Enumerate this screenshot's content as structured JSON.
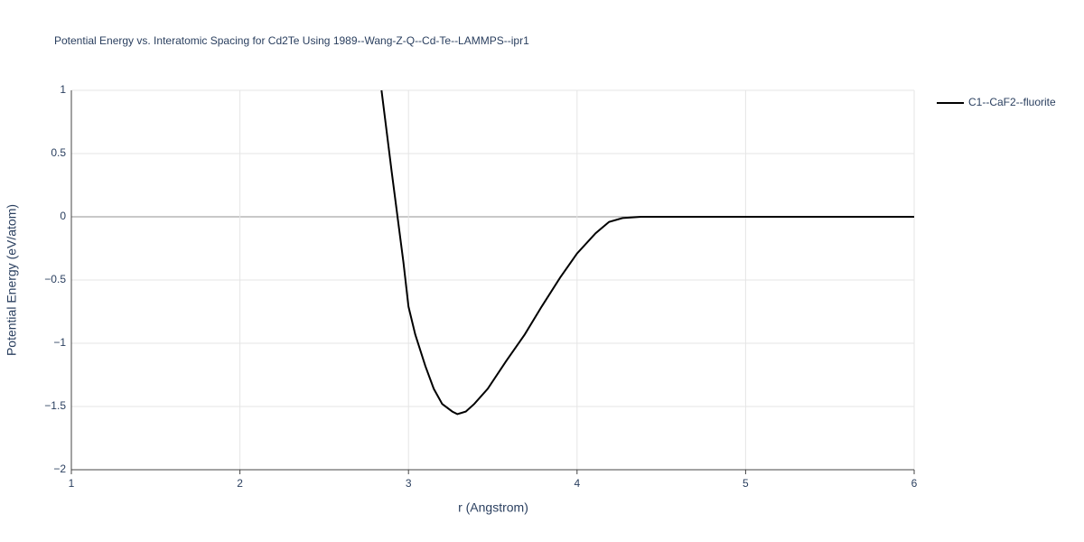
{
  "chart_data": {
    "type": "line",
    "title": "Potential Energy vs. Interatomic Spacing for Cd2Te Using 1989--Wang-Z-Q--Cd-Te--LAMMPS--ipr1",
    "x_label": "r (Angstrom)",
    "y_label": "Potential Energy (eV/atom)",
    "xlim": [
      1,
      6
    ],
    "ylim": [
      -2,
      1
    ],
    "xticks": [
      1,
      2,
      3,
      4,
      5,
      6
    ],
    "yticks": [
      1,
      0.5,
      0,
      {
        "value": -0.5,
        "label": "−0.5"
      },
      {
        "value": -1,
        "label": "−1"
      },
      {
        "value": -1.5,
        "label": "−1.5"
      },
      {
        "value": -2,
        "label": "−2"
      }
    ],
    "grid": true,
    "legend_position": "right",
    "series": [
      {
        "name": "C1--CaF2--fluorite",
        "color": "#000000",
        "x": [
          2.84,
          2.9,
          2.935,
          2.97,
          3.0,
          3.04,
          3.1,
          3.15,
          3.2,
          3.26,
          3.29,
          3.34,
          3.39,
          3.47,
          3.58,
          3.69,
          3.79,
          3.9,
          4.0,
          4.11,
          4.19,
          4.27,
          4.38,
          5.0,
          6.0
        ],
        "values": [
          1,
          0.36,
          0,
          -0.36,
          -0.71,
          -0.93,
          -1.18,
          -1.36,
          -1.48,
          -1.54,
          -1.56,
          -1.54,
          -1.48,
          -1.36,
          -1.14,
          -0.93,
          -0.71,
          -0.48,
          -0.29,
          -0.13,
          -0.04,
          -0.01,
          0,
          0,
          0
        ]
      }
    ]
  }
}
